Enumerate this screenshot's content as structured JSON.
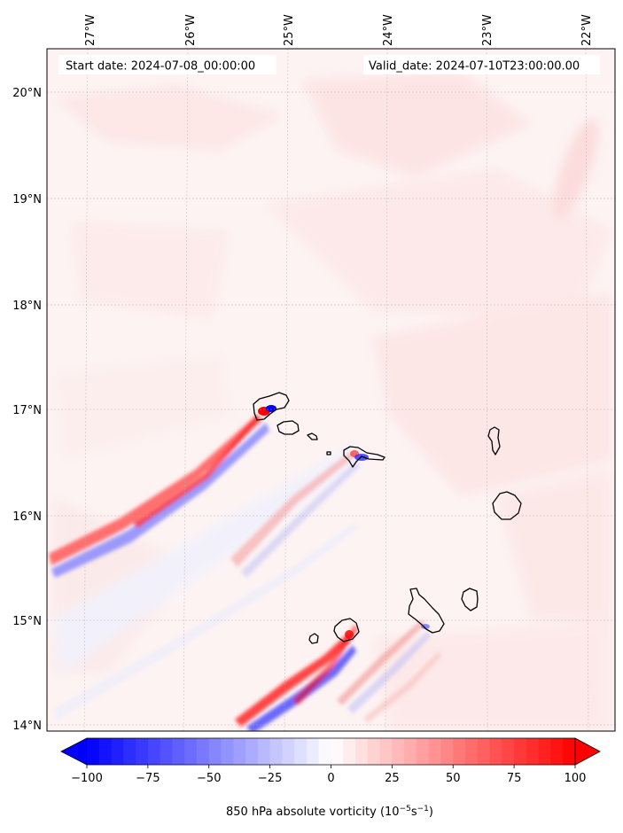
{
  "map": {
    "start_date_label": "Start date: 2024-07-08_00:00:00",
    "valid_date_label": "Valid_date: 2024-07-10T23:00:00.00",
    "lon_ticks": [
      "27°W",
      "26°W",
      "25°W",
      "24°W",
      "23°W",
      "22°W"
    ],
    "lat_ticks": [
      "20°N",
      "19°N",
      "18°N",
      "17°N",
      "16°N",
      "15°N",
      "14°N"
    ],
    "gridlines": true,
    "field": "850 hPa absolute vorticity",
    "colormap": "bwr"
  },
  "colorbar": {
    "ticks": [
      "−100",
      "−75",
      "−50",
      "−25",
      "0",
      "25",
      "50",
      "75",
      "100"
    ],
    "label": "850 hPa absolute vorticity",
    "unit": "(10−5s−1)",
    "unit_parts": {
      "base1": "10",
      "exp1": "−5",
      "base2": "s",
      "exp2": "−1"
    },
    "range": [
      -100,
      100
    ],
    "extend": "both",
    "low_color": "#0000ff",
    "mid_color": "#ffffff",
    "high_color": "#ff0000"
  }
}
